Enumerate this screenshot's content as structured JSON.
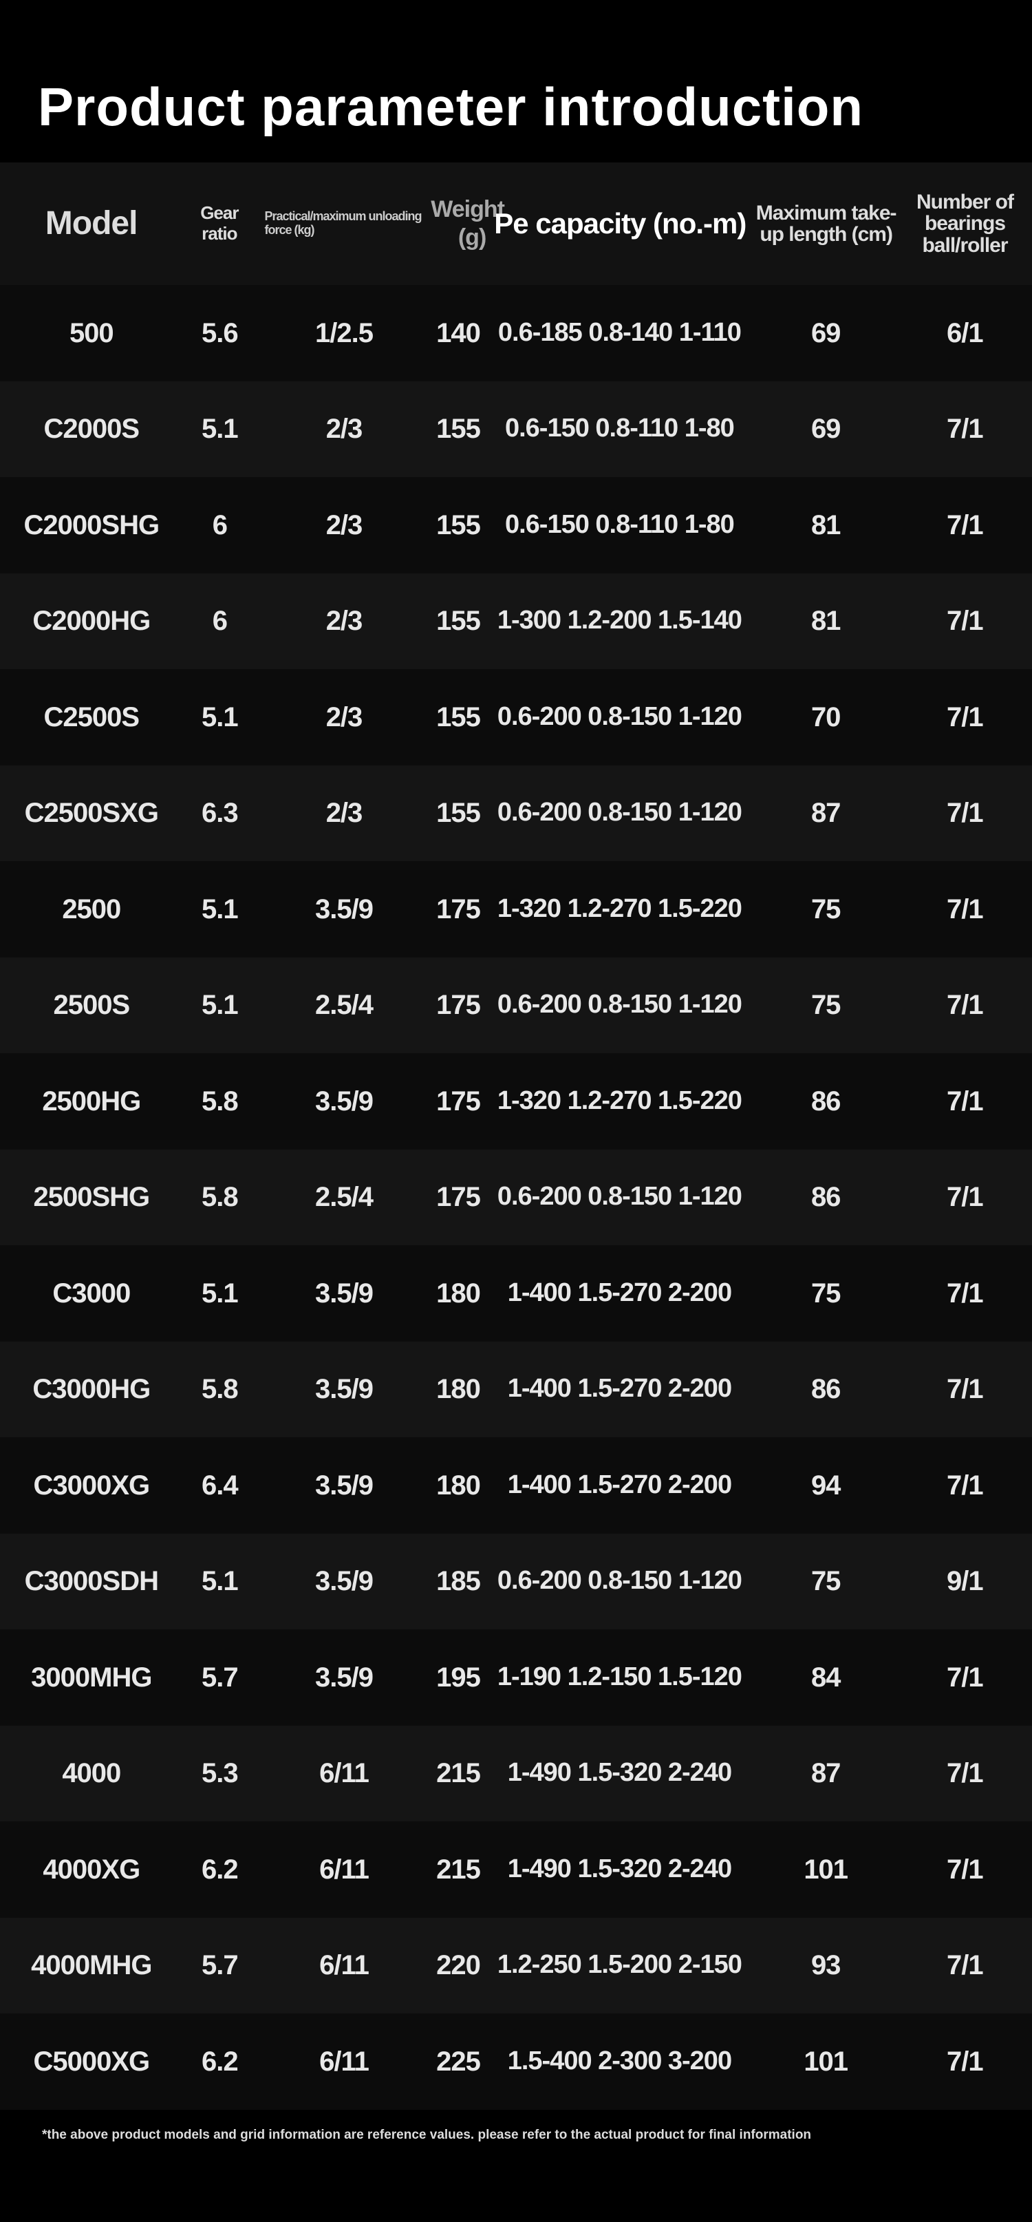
{
  "title": "Product parameter introduction",
  "headers": [
    "Model",
    "Gear ratio",
    "Practical/maximum unloading force (kg)",
    "Weight (g)",
    "Pe capacity (no.-m)",
    "Maximum take-up length (cm)",
    "Number of bearings ball/roller"
  ],
  "rows": [
    [
      "500",
      "5.6",
      "1/2.5",
      "140",
      "0.6-185 0.8-140 1-110",
      "69",
      "6/1"
    ],
    [
      "C2000S",
      "5.1",
      "2/3",
      "155",
      "0.6-150 0.8-110 1-80",
      "69",
      "7/1"
    ],
    [
      "C2000SHG",
      "6",
      "2/3",
      "155",
      "0.6-150 0.8-110 1-80",
      "81",
      "7/1"
    ],
    [
      "C2000HG",
      "6",
      "2/3",
      "155",
      "1-300 1.2-200 1.5-140",
      "81",
      "7/1"
    ],
    [
      "C2500S",
      "5.1",
      "2/3",
      "155",
      "0.6-200 0.8-150 1-120",
      "70",
      "7/1"
    ],
    [
      "C2500SXG",
      "6.3",
      "2/3",
      "155",
      "0.6-200 0.8-150 1-120",
      "87",
      "7/1"
    ],
    [
      "2500",
      "5.1",
      "3.5/9",
      "175",
      "1-320 1.2-270 1.5-220",
      "75",
      "7/1"
    ],
    [
      "2500S",
      "5.1",
      "2.5/4",
      "175",
      "0.6-200 0.8-150 1-120",
      "75",
      "7/1"
    ],
    [
      "2500HG",
      "5.8",
      "3.5/9",
      "175",
      "1-320 1.2-270 1.5-220",
      "86",
      "7/1"
    ],
    [
      "2500SHG",
      "5.8",
      "2.5/4",
      "175",
      "0.6-200 0.8-150 1-120",
      "86",
      "7/1"
    ],
    [
      "C3000",
      "5.1",
      "3.5/9",
      "180",
      "1-400 1.5-270 2-200",
      "75",
      "7/1"
    ],
    [
      "C3000HG",
      "5.8",
      "3.5/9",
      "180",
      "1-400 1.5-270 2-200",
      "86",
      "7/1"
    ],
    [
      "C3000XG",
      "6.4",
      "3.5/9",
      "180",
      "1-400 1.5-270 2-200",
      "94",
      "7/1"
    ],
    [
      "C3000SDH",
      "5.1",
      "3.5/9",
      "185",
      "0.6-200 0.8-150 1-120",
      "75",
      "9/1"
    ],
    [
      "3000MHG",
      "5.7",
      "3.5/9",
      "195",
      "1-190 1.2-150 1.5-120",
      "84",
      "7/1"
    ],
    [
      "4000",
      "5.3",
      "6/11",
      "215",
      "1-490 1.5-320 2-240",
      "87",
      "7/1"
    ],
    [
      "4000XG",
      "6.2",
      "6/11",
      "215",
      "1-490 1.5-320 2-240",
      "101",
      "7/1"
    ],
    [
      "4000MHG",
      "5.7",
      "6/11",
      "220",
      "1.2-250 1.5-200 2-150",
      "93",
      "7/1"
    ],
    [
      "C5000XG",
      "6.2",
      "6/11",
      "225",
      "1.5-400 2-300 3-200",
      "101",
      "7/1"
    ]
  ],
  "footnote": "*the above product models and grid information are reference values. please refer to the actual product for final information"
}
